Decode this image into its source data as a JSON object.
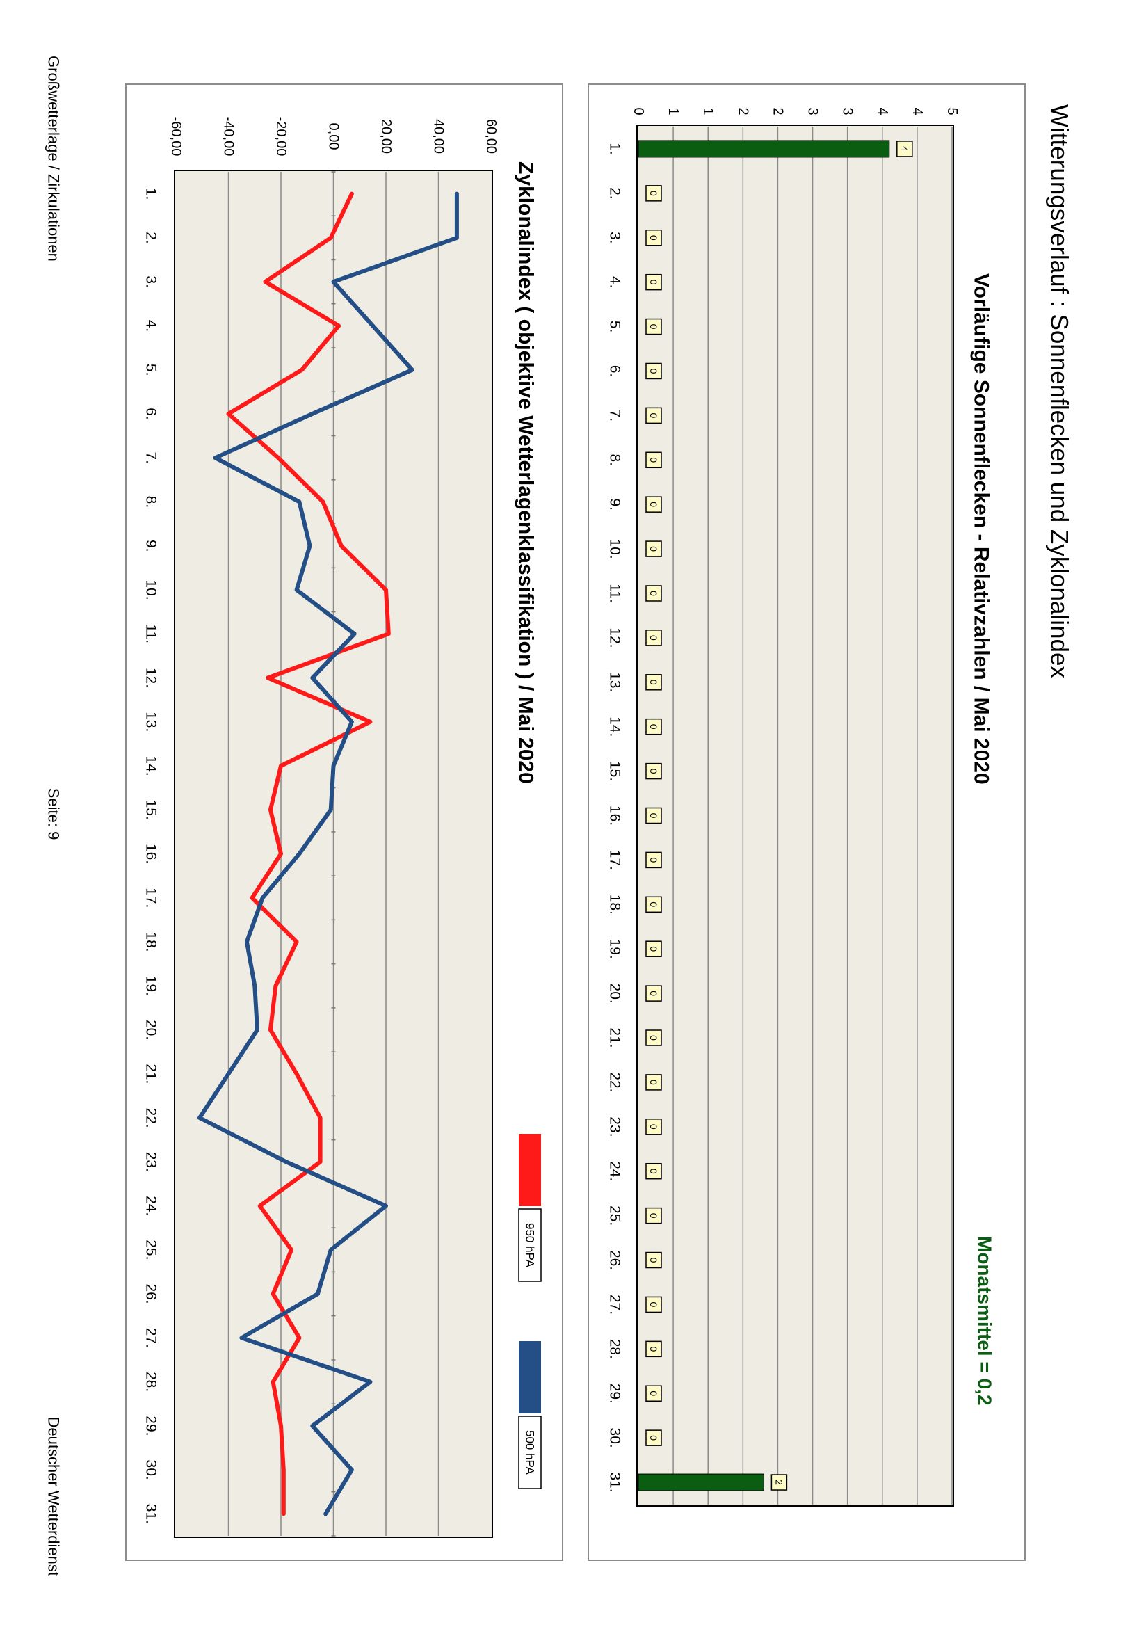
{
  "page": {
    "title": "Witterungsverlauf : Sonnenflecken und Zyklonalindex",
    "footer_left": "Großwetterlage / Zirkulationen",
    "footer_center": "Seite: 9",
    "footer_right": "Deutscher Wetterdienst"
  },
  "colors": {
    "plot_bg": "#efede3",
    "bar": "#0b5d12",
    "label_bg": "#fffbc7",
    "green_text": "#0b5d12",
    "grid": "#8a8a8a",
    "frame": "#8c8c8c",
    "red": "#ff1a1a",
    "blue": "#234e86"
  },
  "chart_data": [
    {
      "type": "bar",
      "title": "Vorläufige Sonnenflecken - Relativzahlen  /  Mai 2020",
      "annotation": "Monatsmittel = 0,2",
      "xlabel": "",
      "ylabel": "",
      "ylim": [
        0,
        5
      ],
      "y_tick_labels": [
        "0",
        "1",
        "1",
        "2",
        "2",
        "3",
        "3",
        "4",
        "4",
        "5"
      ],
      "categories": [
        "1.",
        "2.",
        "3.",
        "4.",
        "5.",
        "6.",
        "7.",
        "8.",
        "9.",
        "10.",
        "11.",
        "12.",
        "13.",
        "14.",
        "15.",
        "16.",
        "17.",
        "18.",
        "19.",
        "20.",
        "21.",
        "22.",
        "23.",
        "24.",
        "25.",
        "26.",
        "27.",
        "28.",
        "29.",
        "30.",
        "31."
      ],
      "values": [
        4,
        0,
        0,
        0,
        0,
        0,
        0,
        0,
        0,
        0,
        0,
        0,
        0,
        0,
        0,
        0,
        0,
        0,
        0,
        0,
        0,
        0,
        0,
        0,
        0,
        0,
        0,
        0,
        0,
        0,
        2
      ],
      "data_labels": [
        "4",
        "0",
        "0",
        "0",
        "0",
        "0",
        "0",
        "0",
        "0",
        "0",
        "0",
        "0",
        "0",
        "0",
        "0",
        "0",
        "0",
        "0",
        "0",
        "0",
        "0",
        "0",
        "0",
        "0",
        "0",
        "0",
        "0",
        "0",
        "0",
        "0",
        "2"
      ],
      "grid": true
    },
    {
      "type": "line",
      "title": "Zyklonalindex  ( objektive Wetterlagenklassifikation )  /  Mai 2020",
      "xlabel": "",
      "ylabel": "",
      "ylim": [
        -60,
        60
      ],
      "y_tick_labels": [
        "-60,00",
        "-40,00",
        "-20,00",
        "0,00",
        "20,00",
        "40,00",
        "60,00"
      ],
      "categories": [
        "1.",
        "2.",
        "3.",
        "4.",
        "5.",
        "6.",
        "7.",
        "8.",
        "9.",
        "10.",
        "11.",
        "12.",
        "13.",
        "14.",
        "15.",
        "16.",
        "17.",
        "18.",
        "19.",
        "20.",
        "21.",
        "22.",
        "23.",
        "24.",
        "25.",
        "26.",
        "27.",
        "28.",
        "29.",
        "30.",
        "31."
      ],
      "series": [
        {
          "name": "950 hPA",
          "color": "#ff1a1a",
          "values": [
            7,
            -1,
            -26,
            2,
            -12,
            -40,
            -21,
            -4,
            3,
            20,
            21,
            -25,
            14,
            -20,
            -24,
            -20,
            -31,
            -14,
            -22,
            -24,
            -14,
            -5,
            -5,
            -28,
            -16,
            -23,
            -13,
            -23,
            -20,
            -19,
            -19
          ]
        },
        {
          "name": "500 hPA",
          "color": "#234e86",
          "values": [
            47,
            47,
            0,
            15,
            30,
            -8,
            -45,
            -13,
            -9,
            -14,
            8,
            -8,
            7,
            0,
            -1,
            -13,
            -27,
            -33,
            -30,
            -29,
            -40,
            -51,
            -18,
            20,
            -1,
            -6,
            -35,
            14,
            -8,
            7,
            -3
          ]
        }
      ],
      "grid": true
    }
  ]
}
